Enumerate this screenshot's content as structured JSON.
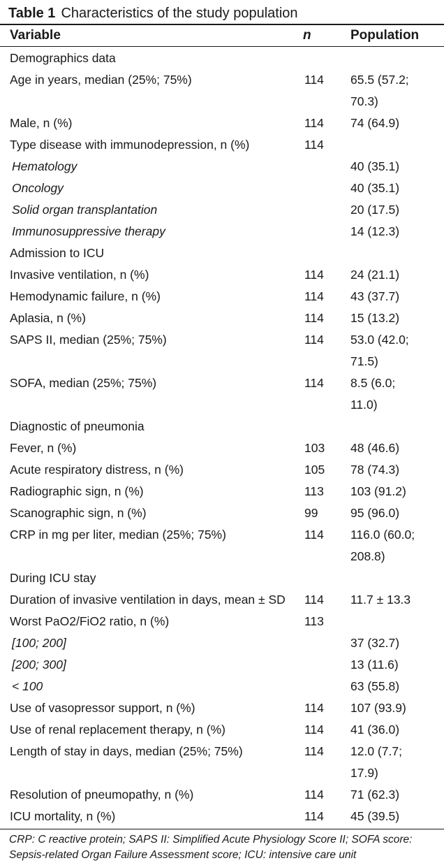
{
  "table": {
    "label": "Table 1",
    "caption": "Characteristics of the study population",
    "headers": [
      "Variable",
      "n",
      "Population"
    ],
    "rows": [
      {
        "variable": "Demographics data",
        "n": "",
        "population": "",
        "style": "section"
      },
      {
        "variable": "Age in years, median (25%; 75%)",
        "n": "114",
        "population": "65.5 (57.2; 70.3)",
        "style": "normal"
      },
      {
        "variable": "Male, n (%)",
        "n": "114",
        "population": "74 (64.9)",
        "style": "normal"
      },
      {
        "variable": "Type disease with immunodepression, n (%)",
        "n": "114",
        "population": "",
        "style": "normal"
      },
      {
        "variable": "Hematology",
        "n": "",
        "population": "40 (35.1)",
        "style": "italic"
      },
      {
        "variable": "Oncology",
        "n": "",
        "population": "40 (35.1)",
        "style": "italic"
      },
      {
        "variable": "Solid organ transplantation",
        "n": "",
        "population": "20 (17.5)",
        "style": "italic"
      },
      {
        "variable": "Immunosuppressive therapy",
        "n": "",
        "population": "14 (12.3)",
        "style": "italic"
      },
      {
        "variable": "Admission to ICU",
        "n": "",
        "population": "",
        "style": "section"
      },
      {
        "variable": "Invasive ventilation, n (%)",
        "n": "114",
        "population": "24 (21.1)",
        "style": "normal"
      },
      {
        "variable": "Hemodynamic failure, n (%)",
        "n": "114",
        "population": "43 (37.7)",
        "style": "normal"
      },
      {
        "variable": "Aplasia, n (%)",
        "n": "114",
        "population": "15 (13.2)",
        "style": "normal"
      },
      {
        "variable": "SAPS II, median (25%; 75%)",
        "n": "114",
        "population": "53.0 (42.0; 71.5)",
        "style": "normal"
      },
      {
        "variable": "SOFA, median (25%; 75%)",
        "n": "114",
        "population": "8.5 (6.0; 11.0)",
        "style": "normal"
      },
      {
        "variable": "Diagnostic of pneumonia",
        "n": "",
        "population": "",
        "style": "section"
      },
      {
        "variable": "Fever, n (%)",
        "n": "103",
        "population": "48 (46.6)",
        "style": "normal"
      },
      {
        "variable": "Acute respiratory distress, n (%)",
        "n": "105",
        "population": "78 (74.3)",
        "style": "normal"
      },
      {
        "variable": "Radiographic sign, n (%)",
        "n": "113",
        "population": "103 (91.2)",
        "style": "normal"
      },
      {
        "variable": "Scanographic sign, n (%)",
        "n": "99",
        "population": "95 (96.0)",
        "style": "normal"
      },
      {
        "variable": "CRP in mg per liter, median (25%; 75%)",
        "n": "114",
        "population": "116.0 (60.0; 208.8)",
        "style": "normal"
      },
      {
        "variable": "During ICU stay",
        "n": "",
        "population": "",
        "style": "section"
      },
      {
        "variable": "Duration of invasive ventilation in days, mean ± SD",
        "n": "114",
        "population": "11.7 ± 13.3",
        "style": "normal"
      },
      {
        "variable": "Worst PaO2/FiO2 ratio, n (%)",
        "n": "113",
        "population": "",
        "style": "normal"
      },
      {
        "variable": "[100; 200]",
        "n": "",
        "population": "37 (32.7)",
        "style": "italic"
      },
      {
        "variable": "[200; 300]",
        "n": "",
        "population": "13 (11.6)",
        "style": "italic"
      },
      {
        "variable": "< 100",
        "n": "",
        "population": "63 (55.8)",
        "style": "italic"
      },
      {
        "variable": "Use of vasopressor support, n (%)",
        "n": "114",
        "population": "107 (93.9)",
        "style": "normal"
      },
      {
        "variable": "Use of renal replacement therapy, n (%)",
        "n": "114",
        "population": "41 (36.0)",
        "style": "normal"
      },
      {
        "variable": "Length of stay in days, median (25%; 75%)",
        "n": "114",
        "population": "12.0 (7.7; 17.9)",
        "style": "normal"
      },
      {
        "variable": "Resolution of pneumopathy, n (%)",
        "n": "114",
        "population": "71 (62.3)",
        "style": "normal"
      },
      {
        "variable": "ICU mortality, n (%)",
        "n": "114",
        "population": "45 (39.5)",
        "style": "normal"
      }
    ],
    "footnote": "CRP: C reactive protein; SAPS II: Simplified Acute Physiology Score II; SOFA score: Sepsis-related Organ Failure Assessment score; ICU: intensive care unit"
  }
}
